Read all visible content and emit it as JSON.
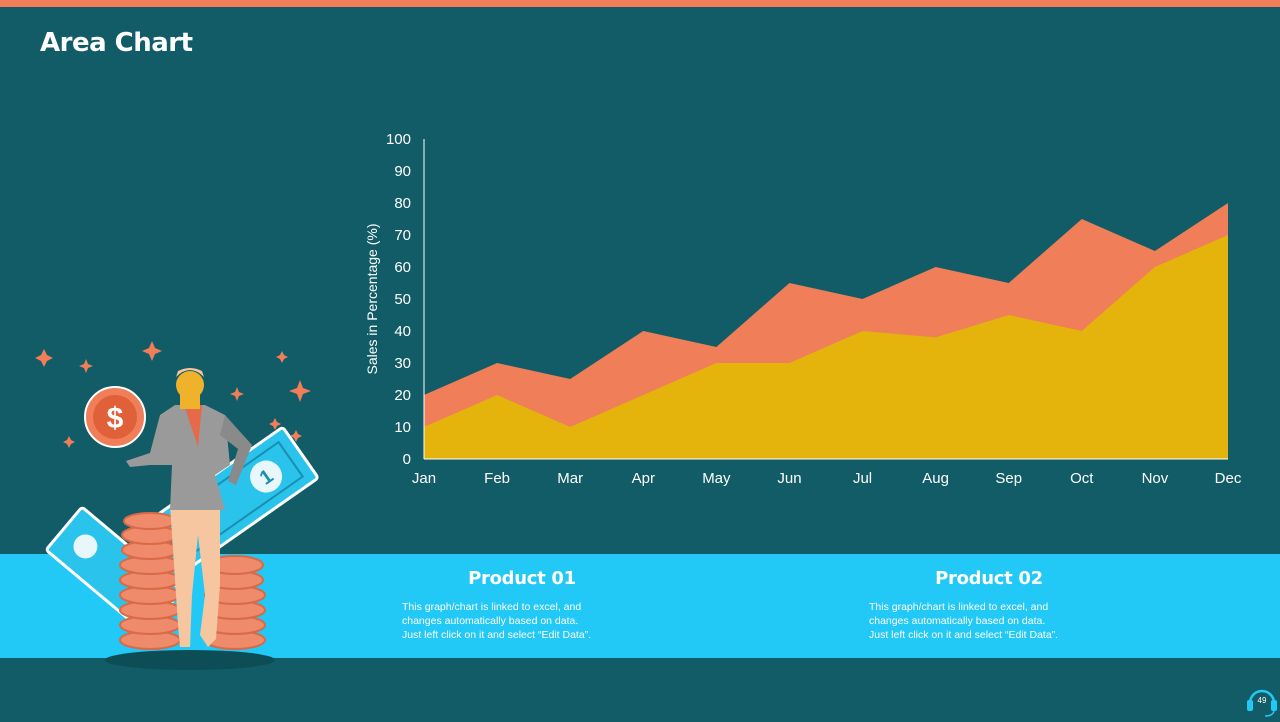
{
  "slide": {
    "title": "Area Chart",
    "page_number": "49",
    "colors": {
      "background": "#115c66",
      "accent": "#ef7e59",
      "band": "#22c8f6",
      "series1": "#e4b40d",
      "series2": "#ef7e59"
    }
  },
  "products": [
    {
      "title": "Product 01",
      "line1": "This graph/chart is linked to excel, and",
      "line2": "changes automatically based on data.",
      "line3": "Just left click on it and select “Edit Data”."
    },
    {
      "title": "Product 02",
      "line1": "This graph/chart is linked to excel, and",
      "line2": "changes automatically based on data.",
      "line3": "Just left click on it and select “Edit Data”."
    }
  ],
  "chart_data": {
    "type": "area",
    "title": "",
    "xlabel": "",
    "ylabel": "Sales in Percentage (%)",
    "categories": [
      "Jan",
      "Feb",
      "Mar",
      "Apr",
      "May",
      "Jun",
      "Jul",
      "Aug",
      "Sep",
      "Oct",
      "Nov",
      "Dec"
    ],
    "series": [
      {
        "values": [
          10,
          20,
          10,
          20,
          30,
          30,
          40,
          38,
          45,
          40,
          60,
          70
        ],
        "color": "#e4b40d"
      },
      {
        "values": [
          20,
          30,
          25,
          40,
          35,
          55,
          50,
          60,
          55,
          75,
          65,
          80
        ],
        "color": "#ef7e59"
      }
    ],
    "ylim": [
      0,
      100
    ],
    "yticks": [
      0,
      10,
      20,
      30,
      40,
      50,
      60,
      70,
      80,
      90,
      100
    ],
    "grid": false,
    "legend": "none"
  }
}
